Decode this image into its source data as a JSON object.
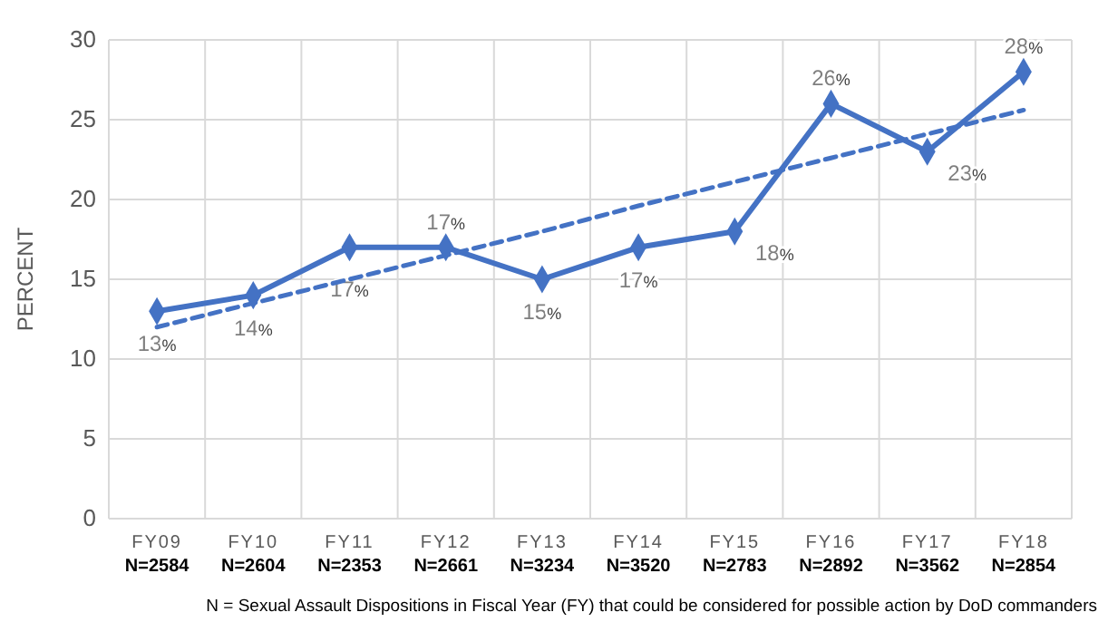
{
  "chart_data": {
    "type": "line",
    "ylabel": "PERCENT",
    "categories": [
      "FY09\nN=2584",
      "FY10\nN=2604",
      "FY11\nN=2353",
      "FY12\nN=2661",
      "FY13\nN=3234",
      "FY14\nN=3520",
      "FY15\nN=2783",
      "FY16\nN=2892",
      "FY17\nN=3562",
      "FY18\nN=2854"
    ],
    "series": [
      {
        "color": "#4472c4",
        "values": [
          13,
          14,
          17,
          17,
          15,
          17,
          18,
          26,
          23,
          28
        ],
        "marker": "diamond",
        "line_style": "solid",
        "value_labels": [
          "13%",
          "14%",
          "17%",
          "17%",
          "15%",
          "17%",
          "18%",
          "26%",
          "23%",
          "28%"
        ]
      },
      {
        "color": "#4472c4",
        "values": [
          12.0,
          13.5,
          15.0,
          16.5,
          18.0,
          19.6,
          21.1,
          22.6,
          24.1,
          25.6
        ],
        "marker": "none",
        "line_style": "dashed"
      }
    ],
    "ylim": [
      0,
      30
    ],
    "yticks": [
      0,
      5,
      10,
      15,
      20,
      25,
      30
    ],
    "grid": true,
    "annotations": [
      "N = Sexual Assault Dispositions in Fiscal Year (FY) that could be considered for possible action by DoD commanders"
    ]
  }
}
